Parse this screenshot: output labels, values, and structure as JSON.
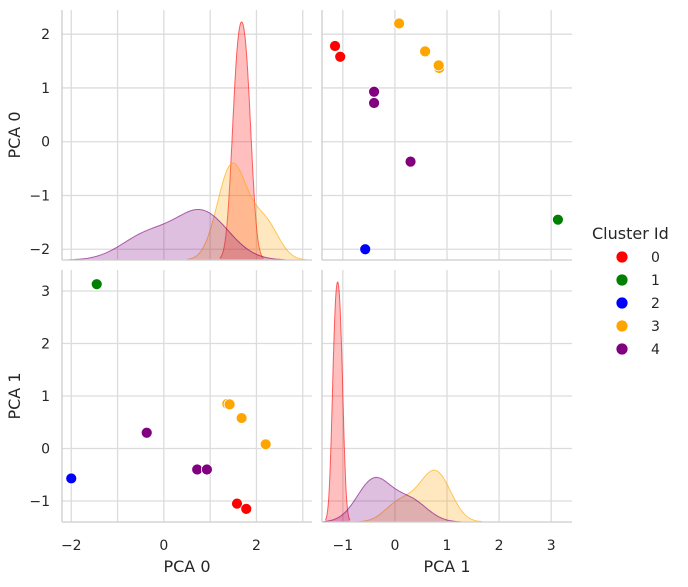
{
  "chart_data": {
    "type": "pairplot",
    "variables": [
      "PCA 0",
      "PCA 1"
    ],
    "hue_label": "Cluster Id",
    "legend_position": "right",
    "grid": true,
    "clusters": [
      {
        "id": "0",
        "color": "#ff0000"
      },
      {
        "id": "1",
        "color": "#008000"
      },
      {
        "id": "2",
        "color": "#0000ff"
      },
      {
        "id": "3",
        "color": "#ffa500"
      },
      {
        "id": "4",
        "color": "#800080"
      }
    ],
    "points": [
      {
        "cluster": 0,
        "pca0": 1.58,
        "pca1": -1.05
      },
      {
        "cluster": 0,
        "pca0": 1.78,
        "pca1": -1.15
      },
      {
        "cluster": 1,
        "pca0": -1.45,
        "pca1": 3.13
      },
      {
        "cluster": 2,
        "pca0": -2.0,
        "pca1": -0.57
      },
      {
        "cluster": 3,
        "pca0": 2.2,
        "pca1": 0.08
      },
      {
        "cluster": 3,
        "pca0": 1.68,
        "pca1": 0.58
      },
      {
        "cluster": 3,
        "pca0": 1.37,
        "pca1": 0.85
      },
      {
        "cluster": 3,
        "pca0": 1.42,
        "pca1": 0.84
      },
      {
        "cluster": 4,
        "pca0": -0.37,
        "pca1": 0.3
      },
      {
        "cluster": 4,
        "pca0": 0.72,
        "pca1": -0.4
      },
      {
        "cluster": 4,
        "pca0": 0.93,
        "pca1": -0.4
      }
    ],
    "axes": {
      "pca0": {
        "lim": [
          -2.2,
          3.2
        ],
        "ticks": [
          -2,
          0,
          2
        ],
        "tick_labels": [
          "−2",
          "0",
          "2"
        ]
      },
      "pca1": {
        "lim": [
          -1.4,
          3.4
        ],
        "ticks": [
          -1,
          0,
          1,
          2,
          3
        ],
        "tick_labels": [
          "−1",
          "0",
          "1",
          "2",
          "3"
        ]
      }
    },
    "diag_pca0_ylim": [
      -2.2,
      2.45
    ],
    "diag_pca0_ticks": [
      -2,
      -1,
      0,
      1,
      2
    ],
    "diag_pca0_tick_labels": [
      "−2",
      "−1",
      "0",
      "1",
      "2"
    ]
  }
}
